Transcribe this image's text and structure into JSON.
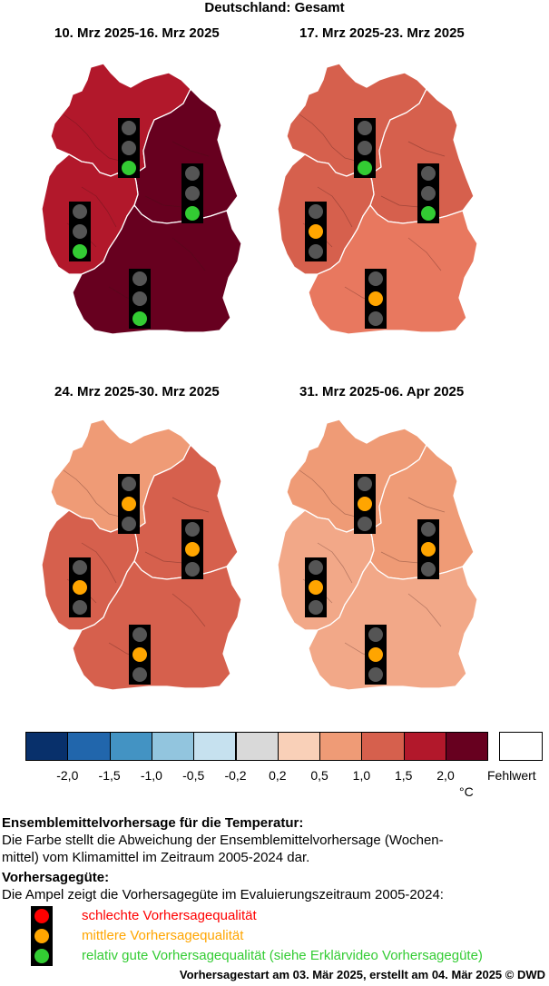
{
  "main_title": "Deutschland: Gesamt",
  "colors": {
    "lt_m2.0": "#08306b",
    "m2.0_m1.5": "#2166ac",
    "m1.5_m1.0": "#4393c3",
    "m1.0_m0.5": "#92c5de",
    "m0.5_m0.2": "#c6e1ef",
    "m0.2_0.2": "#d9d9d9",
    "0.2_0.5": "#f9d0b8",
    "0.5_1.0": "#ef9b76",
    "1.0_1.5": "#d6604d",
    "1.5_2.0": "#b2182b",
    "gt_2.0": "#67001f",
    "light_red": "#ff0000",
    "light_orange": "#ffa500",
    "light_green": "#33cc33",
    "light_off": "#555555"
  },
  "maps": [
    {
      "title": "10. Mrz 2025-16. Mrz 2025",
      "regions": {
        "north": "#b2182b",
        "west": "#b2182b",
        "east": "#67001f",
        "south": "#67001f"
      },
      "lights": {
        "north": "green",
        "west": "green",
        "east": "green",
        "south": "green"
      }
    },
    {
      "title": "17. Mrz 2025-23. Mrz 2025",
      "regions": {
        "north": "#d6604d",
        "west": "#d6604d",
        "east": "#d6604d",
        "south": "#e8785f"
      },
      "lights": {
        "north": "green",
        "west": "orange",
        "east": "green",
        "south": "orange"
      }
    },
    {
      "title": "24. Mrz 2025-30. Mrz 2025",
      "regions": {
        "north": "#ef9b76",
        "west": "#d6604d",
        "east": "#d6604d",
        "south": "#d6604d"
      },
      "lights": {
        "north": "orange",
        "west": "orange",
        "east": "orange",
        "south": "orange"
      }
    },
    {
      "title": "31. Mrz 2025-06. Apr 2025",
      "regions": {
        "north": "#ef9b76",
        "west": "#f2a888",
        "east": "#ef9b76",
        "south": "#f2a888"
      },
      "lights": {
        "north": "orange",
        "west": "orange",
        "east": "orange",
        "south": "orange"
      }
    }
  ],
  "legend": {
    "colors": [
      "#08306b",
      "#2166ac",
      "#4393c3",
      "#92c5de",
      "#c6e1ef",
      "#d9d9d9",
      "#f9d0b8",
      "#ef9b76",
      "#d6604d",
      "#b2182b",
      "#67001f"
    ],
    "ticks": [
      "-2,0",
      "-1,5",
      "-1,0",
      "-0,5",
      "-0,2",
      "0,2",
      "0,5",
      "1,0",
      "1,5",
      "2,0"
    ],
    "unit": "°C",
    "missing_label": "Fehlwert"
  },
  "desc": {
    "heading1": "Ensemblemittelvorhersage für die Temperatur:",
    "line1": "Die Farbe stellt die Abweichung der Ensemblemittelvorhersage (Wochen-",
    "line2": "mittel) vom Klimamittel im Zeitraum 2005-2024 dar.",
    "heading2": "Vorhersagegüte:",
    "line3": "Die Ampel zeigt die Vorhersagegüte im Evaluierungszeitraum 2005-2024:",
    "bad": "schlechte Vorhersagequalität",
    "medium": "mittlere Vorhersagequalität",
    "good": "relativ gute Vorhersagequalität (siehe Erklärvideo Vorhersagegüte)"
  },
  "footer": "Vorhersagestart am 03. Mär 2025, erstellt am 04. Mär 2025 © DWD"
}
